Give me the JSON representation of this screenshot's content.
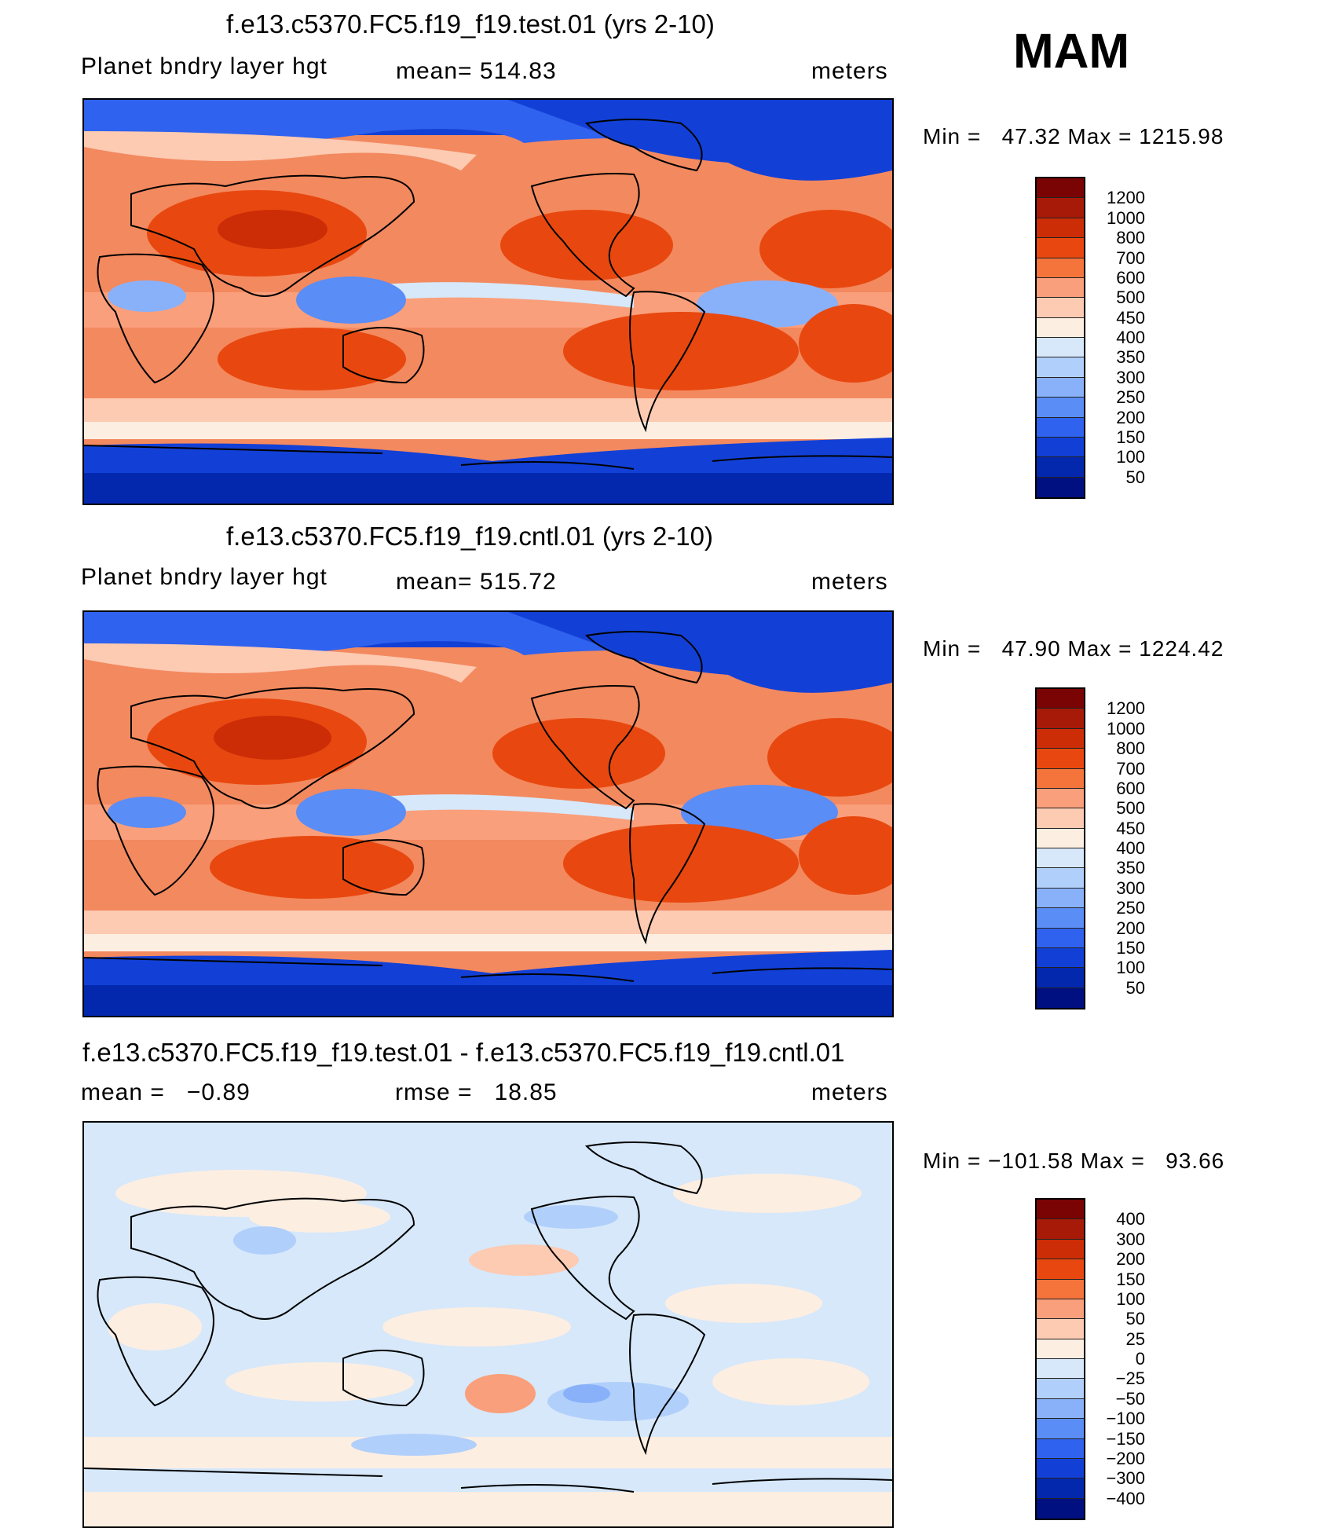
{
  "season": "MAM",
  "panels": [
    {
      "id": "test",
      "title": "f.e13.c5370.FC5.f19_f19.test.01 (yrs 2-10)",
      "left_label": "Planet bndry layer hgt",
      "center_label": "mean= 514.83",
      "right_label": "meters",
      "minmax": "Min =   47.32 Max = 1215.98",
      "colorbar": {
        "colors": [
          "#7a0403",
          "#a81a08",
          "#cc2d06",
          "#e8480f",
          "#f5743c",
          "#fa9f7b",
          "#fdcab2",
          "#fdeee2",
          "#d6e8fa",
          "#b1cffb",
          "#89b1fa",
          "#5a8df5",
          "#2f62ee",
          "#1240d6",
          "#0328ae",
          "#001080"
        ],
        "labels": [
          "1200",
          "1000",
          "800",
          "700",
          "600",
          "500",
          "450",
          "400",
          "350",
          "300",
          "250",
          "200",
          "150",
          "100",
          "50"
        ]
      }
    },
    {
      "id": "cntl",
      "title": "f.e13.c5370.FC5.f19_f19.cntl.01 (yrs 2-10)",
      "left_label": "Planet bndry layer hgt",
      "center_label": "mean= 515.72",
      "right_label": "meters",
      "minmax": "Min =   47.90 Max = 1224.42",
      "colorbar": {
        "colors": [
          "#7a0403",
          "#a81a08",
          "#cc2d06",
          "#e8480f",
          "#f5743c",
          "#fa9f7b",
          "#fdcab2",
          "#fdeee2",
          "#d6e8fa",
          "#b1cffb",
          "#89b1fa",
          "#5a8df5",
          "#2f62ee",
          "#1240d6",
          "#0328ae",
          "#001080"
        ],
        "labels": [
          "1200",
          "1000",
          "800",
          "700",
          "600",
          "500",
          "450",
          "400",
          "350",
          "300",
          "250",
          "200",
          "150",
          "100",
          "50"
        ]
      }
    },
    {
      "id": "diff",
      "title": "f.e13.c5370.FC5.f19_f19.test.01 - f.e13.c5370.FC5.f19_f19.cntl.01",
      "left_label": "mean =   −0.89",
      "center_label": "rmse =   18.85",
      "right_label": "meters",
      "minmax": "Min = −101.58 Max =   93.66",
      "colorbar": {
        "colors": [
          "#7a0403",
          "#a81a08",
          "#cc2d06",
          "#e8480f",
          "#f5743c",
          "#fa9f7b",
          "#fdcab2",
          "#fdeee2",
          "#d6e8fa",
          "#b1cffb",
          "#89b1fa",
          "#5a8df5",
          "#2f62ee",
          "#1240d6",
          "#0328ae",
          "#001080"
        ],
        "labels": [
          "400",
          "300",
          "200",
          "150",
          "100",
          "50",
          "25",
          "0",
          "−25",
          "−50",
          "−100",
          "−150",
          "−200",
          "−300",
          "−400"
        ]
      }
    }
  ]
}
